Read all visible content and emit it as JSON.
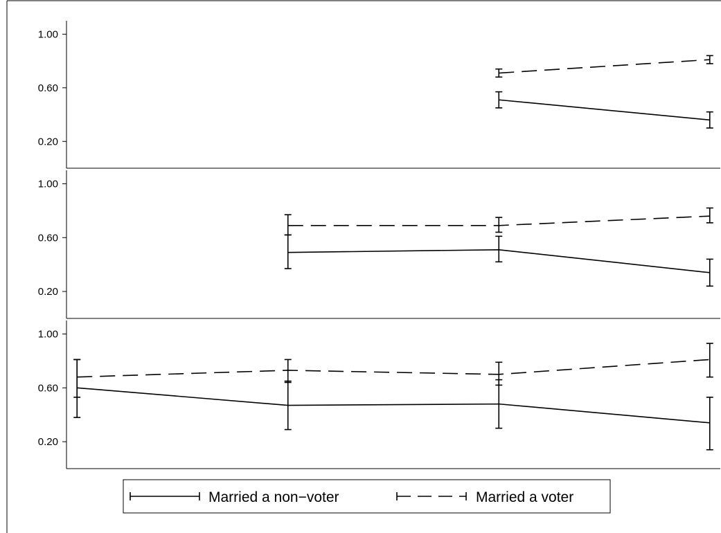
{
  "legend": {
    "items": [
      {
        "label": "Married a non−voter",
        "dash": "solid"
      },
      {
        "label": "Married a voter",
        "dash": "dashed"
      }
    ]
  },
  "chart_data": [
    {
      "type": "line",
      "ylim": [
        0,
        1.1
      ],
      "yticks": [
        "1.00",
        "0.60",
        "0.20"
      ],
      "xlim": [
        0.95,
        4.05
      ],
      "grid": false,
      "series": [
        {
          "name": "Married a non−voter",
          "x": [
            3,
            4
          ],
          "y": [
            0.51,
            0.36
          ],
          "lower": [
            0.45,
            0.3
          ],
          "upper": [
            0.57,
            0.42
          ]
        },
        {
          "name": "Married a voter",
          "x": [
            3,
            4
          ],
          "y": [
            0.71,
            0.81
          ],
          "lower": [
            0.68,
            0.78
          ],
          "upper": [
            0.74,
            0.84
          ]
        }
      ]
    },
    {
      "type": "line",
      "ylim": [
        0,
        1.1
      ],
      "yticks": [
        "1.00",
        "0.60",
        "0.20"
      ],
      "xlim": [
        0.95,
        4.05
      ],
      "grid": false,
      "series": [
        {
          "name": "Married a non−voter",
          "x": [
            2,
            3,
            4
          ],
          "y": [
            0.49,
            0.51,
            0.34
          ],
          "lower": [
            0.37,
            0.42,
            0.24
          ],
          "upper": [
            0.62,
            0.61,
            0.44
          ]
        },
        {
          "name": "Married a voter",
          "x": [
            2,
            3,
            4
          ],
          "y": [
            0.69,
            0.69,
            0.76
          ],
          "lower": [
            0.62,
            0.64,
            0.71
          ],
          "upper": [
            0.77,
            0.75,
            0.82
          ]
        }
      ]
    },
    {
      "type": "line",
      "ylim": [
        0,
        1.1
      ],
      "yticks": [
        "1.00",
        "0.60",
        "0.20"
      ],
      "xlim": [
        0.95,
        4.05
      ],
      "grid": false,
      "series": [
        {
          "name": "Married a non−voter",
          "x": [
            1,
            2,
            3,
            4
          ],
          "y": [
            0.6,
            0.47,
            0.48,
            0.34
          ],
          "lower": [
            0.38,
            0.29,
            0.3,
            0.14
          ],
          "upper": [
            0.81,
            0.65,
            0.66,
            0.53
          ]
        },
        {
          "name": "Married a voter",
          "x": [
            1,
            2,
            3,
            4
          ],
          "y": [
            0.68,
            0.73,
            0.7,
            0.81
          ],
          "lower": [
            0.53,
            0.64,
            0.62,
            0.68
          ],
          "upper": [
            0.81,
            0.81,
            0.79,
            0.93
          ]
        }
      ]
    }
  ]
}
